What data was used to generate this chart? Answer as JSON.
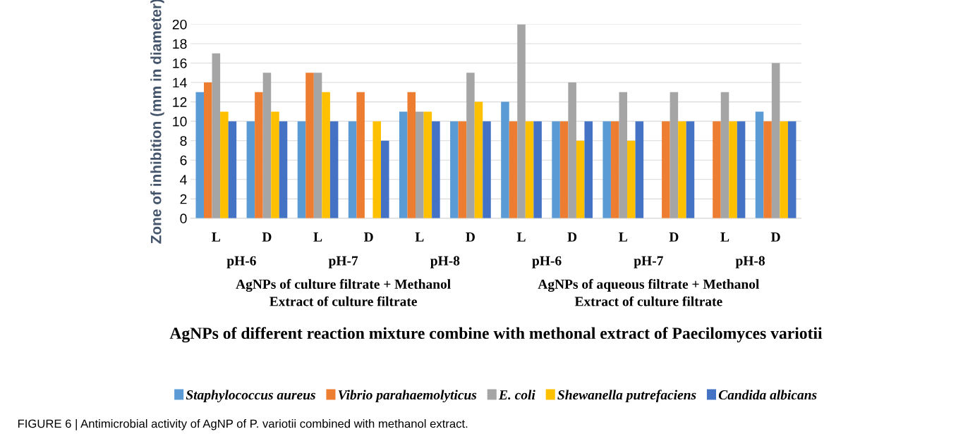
{
  "chart_data": {
    "type": "bar",
    "ylabel": "Zone of inhibition (mm in diameter)",
    "categories": [
      "L",
      "D",
      "L",
      "D",
      "L",
      "D",
      "L",
      "D",
      "L",
      "D",
      "L",
      "D"
    ],
    "series": [
      {
        "name": "Staphylococcus aureus",
        "color": "#5b9bd5",
        "values": [
          13,
          10,
          10,
          10,
          11,
          10,
          12,
          10,
          10,
          0,
          0,
          11
        ]
      },
      {
        "name": "Vibrio parahaemolyticus",
        "color": "#ed7d31",
        "values": [
          14,
          13,
          15,
          13,
          13,
          10,
          10,
          10,
          10,
          10,
          10,
          10
        ]
      },
      {
        "name": "E. coli",
        "color": "#a5a5a5",
        "values": [
          17,
          15,
          15,
          0,
          11,
          15,
          20,
          14,
          13,
          13,
          13,
          16
        ]
      },
      {
        "name": "Shewanella putrefaciens",
        "color": "#ffc000",
        "values": [
          11,
          11,
          13,
          10,
          11,
          12,
          10,
          8,
          8,
          10,
          10,
          10
        ]
      },
      {
        "name": "Candida albicans",
        "color": "#4472c4",
        "values": [
          10,
          10,
          10,
          8,
          10,
          10,
          10,
          10,
          10,
          10,
          10,
          10
        ]
      }
    ],
    "ylim": [
      0,
      20
    ],
    "yticks": [
      0,
      2,
      4,
      6,
      8,
      10,
      12,
      14,
      16,
      18,
      20
    ],
    "grid": "y",
    "legend": "bottom",
    "annotations": [
      "pH-6",
      "pH-7",
      "pH-8",
      "pH-6",
      "pH-7",
      "pH-8",
      "AgNPs of culture filtrate + Methanol\nExtract of culture filtrate",
      "AgNPs of aqueous filtrate + Methanol\nExtract of culture filtrate",
      "AgNPs of different reaction mixture combine with methonal extract of Paecilomyces variotii",
      "FIGURE 6 | Antimicrobial activity of AgNP of P. variotii combined with methanol extract."
    ]
  }
}
